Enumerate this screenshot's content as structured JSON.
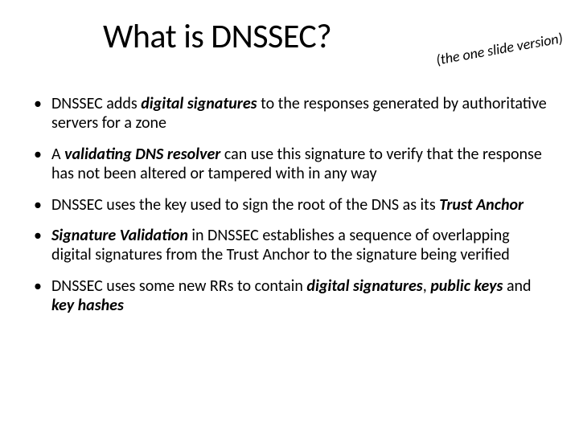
{
  "title": "What is DNSSEC?",
  "subtitle": "(the one slide version)",
  "bullets": [
    {
      "pre": "DNSSEC adds ",
      "em1": "digital signatures",
      "mid": " to the responses generated by authoritative servers for a zone",
      "em2": "",
      "post": ""
    },
    {
      "pre": "A ",
      "em1": "validating DNS resolver",
      "mid": " can use this signature to verify that the response has not been altered or tampered with in any way",
      "em2": "",
      "post": ""
    },
    {
      "pre": "DNSSEC uses the key used to sign the root of the DNS as its ",
      "em1": "Trust Anchor",
      "mid": "",
      "em2": "",
      "post": ""
    },
    {
      "pre": "",
      "em1": "Signature Validation",
      "mid": " in DNSSEC establishes a sequence of overlapping digital signatures from the Trust Anchor to the signature being verified",
      "em2": "",
      "post": ""
    },
    {
      "pre": "DNSSEC uses some new RRs to contain ",
      "em1": "digital signatures",
      "mid": ", ",
      "em2": "public keys",
      "post_and": " and ",
      "em3": "key hashes",
      "post": ""
    }
  ],
  "colors": {
    "background": "#ffffff",
    "text": "#000000"
  },
  "typography": {
    "title_fontsize": 42,
    "body_fontsize": 20,
    "subtitle_fontsize": 18,
    "font_family": "Calibri"
  }
}
